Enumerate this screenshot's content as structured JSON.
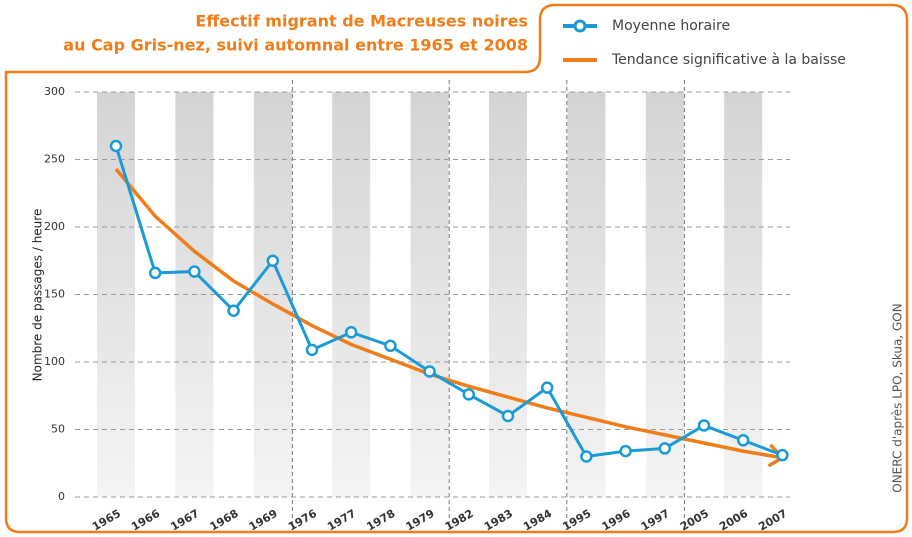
{
  "chart_data": {
    "type": "line",
    "title": "Effectif migrant de Macreuses noires",
    "subtitle": "au Cap Gris-nez, suivi automnal entre 1965 et 2008",
    "y_label": "Nombre de passages / heure",
    "source": "ONERC d'après LPO, Skua, GON",
    "categories": [
      "1965",
      "1966",
      "1967",
      "1968",
      "1969",
      "1976",
      "1977",
      "1978",
      "1979",
      "1982",
      "1983",
      "1984",
      "1995",
      "1996",
      "1997",
      "2005",
      "2006",
      "2007"
    ],
    "series": [
      {
        "name": "Moyenne horaire",
        "color": "#1a9ad6",
        "values": [
          260,
          166,
          167,
          138,
          175,
          109,
          122,
          112,
          93,
          76,
          60,
          81,
          30,
          34,
          36,
          53,
          42,
          31
        ]
      },
      {
        "name": "Tendance significative à la baisse",
        "color": "#ef7d1a",
        "values": [
          243,
          208,
          182,
          160,
          143,
          127,
          113,
          102,
          91,
          82,
          74,
          66,
          59,
          52,
          46,
          40,
          34,
          29
        ]
      }
    ],
    "ylim": [
      0,
      300
    ],
    "yticks": [
      0,
      50,
      100,
      150,
      200,
      250,
      300
    ],
    "grid": true
  }
}
